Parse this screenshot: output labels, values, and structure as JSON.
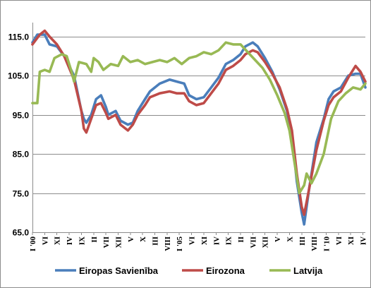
{
  "chart_data": {
    "type": "line",
    "title": "",
    "xlabel": "",
    "ylabel": "",
    "ylim": [
      65.0,
      117.5
    ],
    "yticks": [
      "65.0",
      "75.0",
      "85.0",
      "95.0",
      "105.0",
      "115.0"
    ],
    "grid": true,
    "legend_position": "bottom",
    "x_start": "2000-01",
    "x_end": "2011-05",
    "x_tick_labels": [
      {
        "date": "2000-01",
        "label": "I '00"
      },
      {
        "date": "2000-06",
        "label": "VI"
      },
      {
        "date": "2000-11",
        "label": "XI"
      },
      {
        "date": "2001-04",
        "label": "IV"
      },
      {
        "date": "2001-09",
        "label": "IX"
      },
      {
        "date": "2002-02",
        "label": "II"
      },
      {
        "date": "2002-07",
        "label": "VII"
      },
      {
        "date": "2002-12",
        "label": "XII"
      },
      {
        "date": "2003-05",
        "label": "V"
      },
      {
        "date": "2003-10",
        "label": "X"
      },
      {
        "date": "2004-03",
        "label": "III"
      },
      {
        "date": "2004-08",
        "label": "VIII"
      },
      {
        "date": "2005-01",
        "label": "I '05"
      },
      {
        "date": "2005-06",
        "label": "VI"
      },
      {
        "date": "2005-11",
        "label": "XI"
      },
      {
        "date": "2006-04",
        "label": "IV"
      },
      {
        "date": "2006-09",
        "label": "IX"
      },
      {
        "date": "2007-02",
        "label": "II"
      },
      {
        "date": "2007-07",
        "label": "VII"
      },
      {
        "date": "2007-12",
        "label": "XII"
      },
      {
        "date": "2008-05",
        "label": "V"
      },
      {
        "date": "2008-10",
        "label": "X"
      },
      {
        "date": "2009-03",
        "label": "III"
      },
      {
        "date": "2009-08",
        "label": "VIII"
      },
      {
        "date": "2010-01",
        "label": "I '10"
      },
      {
        "date": "2010-06",
        "label": "VI"
      },
      {
        "date": "2010-11",
        "label": "XI"
      },
      {
        "date": "2011-04",
        "label": "IV"
      }
    ],
    "series": [
      {
        "name": "Eiropas Savienība",
        "color": "#4a7ebb",
        "points": [
          [
            "2000-01",
            113.5
          ],
          [
            "2000-03",
            115.5
          ],
          [
            "2000-06",
            115.5
          ],
          [
            "2000-08",
            113.0
          ],
          [
            "2000-11",
            112.5
          ],
          [
            "2001-02",
            110.0
          ],
          [
            "2001-06",
            105.0
          ],
          [
            "2001-09",
            96.0
          ],
          [
            "2001-10",
            94.0
          ],
          [
            "2001-11",
            93.0
          ],
          [
            "2002-01",
            95.0
          ],
          [
            "2002-03",
            99.0
          ],
          [
            "2002-05",
            100.0
          ],
          [
            "2002-07",
            97.0
          ],
          [
            "2002-08",
            95.0
          ],
          [
            "2002-11",
            96.0
          ],
          [
            "2003-01",
            93.5
          ],
          [
            "2003-04",
            92.5
          ],
          [
            "2003-06",
            93.0
          ],
          [
            "2003-08",
            96.0
          ],
          [
            "2003-11",
            99.0
          ],
          [
            "2004-01",
            101.0
          ],
          [
            "2004-05",
            103.0
          ],
          [
            "2004-09",
            104.0
          ],
          [
            "2004-12",
            103.5
          ],
          [
            "2005-03",
            103.0
          ],
          [
            "2005-05",
            100.0
          ],
          [
            "2005-08",
            99.0
          ],
          [
            "2005-11",
            99.5
          ],
          [
            "2006-02",
            102.0
          ],
          [
            "2006-05",
            104.5
          ],
          [
            "2006-08",
            108.0
          ],
          [
            "2006-11",
            109.0
          ],
          [
            "2007-02",
            110.5
          ],
          [
            "2007-04",
            112.5
          ],
          [
            "2007-07",
            113.5
          ],
          [
            "2007-09",
            112.5
          ],
          [
            "2007-12",
            109.5
          ],
          [
            "2008-03",
            106.0
          ],
          [
            "2008-06",
            101.5
          ],
          [
            "2008-09",
            96.0
          ],
          [
            "2008-11",
            90.0
          ],
          [
            "2009-01",
            78.0
          ],
          [
            "2009-03",
            70.0
          ],
          [
            "2009-04",
            67.0
          ],
          [
            "2009-06",
            76.0
          ],
          [
            "2009-09",
            88.0
          ],
          [
            "2009-12",
            94.0
          ],
          [
            "2010-02",
            99.0
          ],
          [
            "2010-04",
            101.0
          ],
          [
            "2010-07",
            102.0
          ],
          [
            "2010-10",
            105.0
          ],
          [
            "2011-01",
            105.5
          ],
          [
            "2011-03",
            105.5
          ],
          [
            "2011-05",
            102.0
          ]
        ]
      },
      {
        "name": "Eirozona",
        "color": "#be4b48",
        "points": [
          [
            "2000-01",
            113.0
          ],
          [
            "2000-04",
            115.5
          ],
          [
            "2000-06",
            116.5
          ],
          [
            "2000-08",
            115.0
          ],
          [
            "2000-11",
            113.0
          ],
          [
            "2001-02",
            110.0
          ],
          [
            "2001-06",
            104.0
          ],
          [
            "2001-09",
            96.0
          ],
          [
            "2001-10",
            91.5
          ],
          [
            "2001-11",
            90.5
          ],
          [
            "2002-01",
            94.0
          ],
          [
            "2002-03",
            97.5
          ],
          [
            "2002-05",
            98.0
          ],
          [
            "2002-07",
            95.5
          ],
          [
            "2002-08",
            94.0
          ],
          [
            "2002-11",
            95.0
          ],
          [
            "2003-01",
            92.5
          ],
          [
            "2003-04",
            91.0
          ],
          [
            "2003-06",
            92.5
          ],
          [
            "2003-08",
            95.0
          ],
          [
            "2003-11",
            97.5
          ],
          [
            "2004-01",
            99.5
          ],
          [
            "2004-05",
            100.5
          ],
          [
            "2004-09",
            101.0
          ],
          [
            "2004-12",
            100.5
          ],
          [
            "2005-03",
            100.5
          ],
          [
            "2005-05",
            98.5
          ],
          [
            "2005-08",
            97.5
          ],
          [
            "2005-11",
            98.0
          ],
          [
            "2006-02",
            100.5
          ],
          [
            "2006-05",
            103.0
          ],
          [
            "2006-08",
            106.5
          ],
          [
            "2006-11",
            107.5
          ],
          [
            "2007-02",
            109.0
          ],
          [
            "2007-04",
            110.5
          ],
          [
            "2007-07",
            111.5
          ],
          [
            "2007-09",
            111.0
          ],
          [
            "2007-12",
            108.5
          ],
          [
            "2008-03",
            105.5
          ],
          [
            "2008-06",
            102.0
          ],
          [
            "2008-09",
            96.5
          ],
          [
            "2008-11",
            91.0
          ],
          [
            "2009-01",
            80.0
          ],
          [
            "2009-03",
            71.5
          ],
          [
            "2009-04",
            69.5
          ],
          [
            "2009-06",
            76.0
          ],
          [
            "2009-09",
            86.0
          ],
          [
            "2009-12",
            93.5
          ],
          [
            "2010-02",
            97.5
          ],
          [
            "2010-04",
            99.5
          ],
          [
            "2010-07",
            101.0
          ],
          [
            "2010-10",
            104.5
          ],
          [
            "2011-01",
            107.5
          ],
          [
            "2011-03",
            106.0
          ],
          [
            "2011-05",
            103.5
          ]
        ]
      },
      {
        "name": "Latvija",
        "color": "#98b954",
        "points": [
          [
            "2000-01",
            98.0
          ],
          [
            "2000-03",
            98.0
          ],
          [
            "2000-04",
            106.0
          ],
          [
            "2000-06",
            106.5
          ],
          [
            "2000-08",
            106.0
          ],
          [
            "2000-10",
            109.5
          ],
          [
            "2001-01",
            110.5
          ],
          [
            "2001-03",
            110.0
          ],
          [
            "2001-05",
            106.0
          ],
          [
            "2001-06",
            103.5
          ],
          [
            "2001-08",
            108.5
          ],
          [
            "2001-11",
            108.0
          ],
          [
            "2002-01",
            106.0
          ],
          [
            "2002-02",
            109.5
          ],
          [
            "2002-04",
            108.5
          ],
          [
            "2002-06",
            106.5
          ],
          [
            "2002-09",
            108.0
          ],
          [
            "2002-12",
            107.5
          ],
          [
            "2003-02",
            110.0
          ],
          [
            "2003-05",
            108.5
          ],
          [
            "2003-08",
            109.0
          ],
          [
            "2003-11",
            108.0
          ],
          [
            "2004-02",
            108.5
          ],
          [
            "2004-05",
            109.0
          ],
          [
            "2004-08",
            108.5
          ],
          [
            "2004-11",
            109.5
          ],
          [
            "2005-02",
            108.0
          ],
          [
            "2005-05",
            109.5
          ],
          [
            "2005-08",
            110.0
          ],
          [
            "2005-11",
            111.0
          ],
          [
            "2006-02",
            110.5
          ],
          [
            "2006-05",
            111.5
          ],
          [
            "2006-08",
            113.5
          ],
          [
            "2006-11",
            113.0
          ],
          [
            "2007-02",
            113.0
          ],
          [
            "2007-05",
            111.0
          ],
          [
            "2007-08",
            109.0
          ],
          [
            "2007-11",
            107.0
          ],
          [
            "2008-02",
            104.0
          ],
          [
            "2008-05",
            100.0
          ],
          [
            "2008-08",
            95.5
          ],
          [
            "2008-10",
            91.0
          ],
          [
            "2008-12",
            83.0
          ],
          [
            "2009-02",
            75.0
          ],
          [
            "2009-04",
            77.0
          ],
          [
            "2009-05",
            80.0
          ],
          [
            "2009-07",
            77.5
          ],
          [
            "2009-09",
            80.0
          ],
          [
            "2009-12",
            85.0
          ],
          [
            "2010-03",
            94.0
          ],
          [
            "2010-06",
            98.5
          ],
          [
            "2010-09",
            100.5
          ],
          [
            "2010-12",
            102.0
          ],
          [
            "2011-03",
            101.5
          ],
          [
            "2011-05",
            103.0
          ]
        ]
      }
    ]
  }
}
